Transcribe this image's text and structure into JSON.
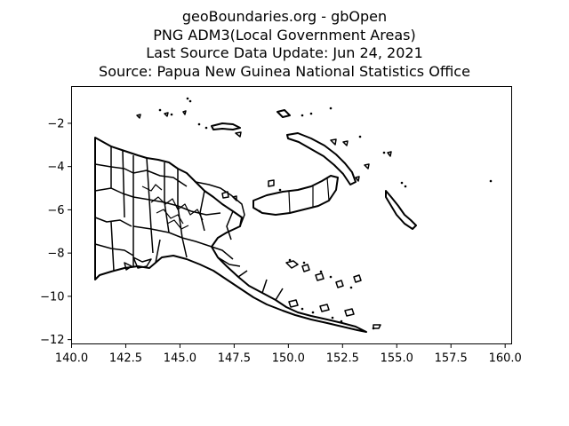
{
  "title_lines": [
    "geoBoundaries.org - gbOpen",
    "PNG ADM3(Local Government Areas)",
    "Last Source Data Update: Jun 24, 2021",
    "Source: Papua New Guinea National Statistics Office"
  ],
  "chart_data": {
    "type": "map",
    "title": "geoBoundaries.org - gbOpen PNG ADM3(Local Government Areas)",
    "xlim": [
      140.0,
      160.3
    ],
    "ylim": [
      -12.2,
      -0.3
    ],
    "x_ticks": [
      140.0,
      142.5,
      145.0,
      147.5,
      150.0,
      152.5,
      155.0,
      157.5,
      160.0
    ],
    "x_tick_labels": [
      "140.0",
      "142.5",
      "145.0",
      "147.5",
      "150.0",
      "152.5",
      "155.0",
      "157.5",
      "160.0"
    ],
    "y_ticks": [
      -2,
      -4,
      -6,
      -8,
      -10,
      -12
    ],
    "y_tick_labels": [
      "−2",
      "−4",
      "−6",
      "−8",
      "−10",
      "−12"
    ],
    "grid": false,
    "stroke_color": "#000000"
  }
}
